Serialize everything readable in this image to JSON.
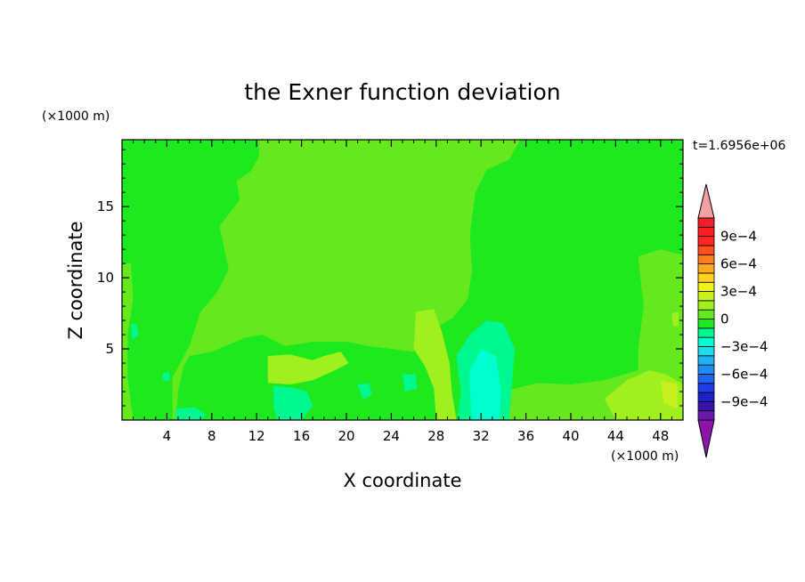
{
  "chart_data": {
    "type": "heatmap",
    "title": "the Exner function deviation",
    "xlabel": "X coordinate",
    "ylabel": "Z coordinate",
    "x_unit": "(×1000 m)",
    "y_unit": "(×1000 m)",
    "time_label": "t=1.6956e+06",
    "xlim": [
      0,
      50
    ],
    "ylim": [
      0,
      19.7
    ],
    "x_ticks": [
      4,
      8,
      12,
      16,
      20,
      24,
      28,
      32,
      36,
      40,
      44,
      48
    ],
    "y_ticks": [
      5,
      10,
      15
    ],
    "colorbar": {
      "levels": [
        -0.0011,
        -0.001,
        -0.0009,
        -0.0008,
        -0.0007,
        -0.0006,
        -0.0005,
        -0.0004,
        -0.0003,
        -0.0002,
        -0.0001,
        0,
        0.0001,
        0.0002,
        0.0003,
        0.0004,
        0.0005,
        0.0006,
        0.0007,
        0.0008,
        0.0009,
        0.001,
        0.0011
      ],
      "colors": [
        "#6a1aa8",
        "#3a14a8",
        "#2020c8",
        "#1e3ce8",
        "#1e64f0",
        "#1e8cf0",
        "#1eb4f0",
        "#1edcf0",
        "#00ffd0",
        "#00f890",
        "#1ee81e",
        "#66e81e",
        "#a0f01e",
        "#c8f01e",
        "#f0f01e",
        "#ffd21e",
        "#ffaa1e",
        "#ff7d1e",
        "#ff501e",
        "#ff281e",
        "#ff1e1e",
        "#f01e28"
      ],
      "under_color": "#8c14a8",
      "over_color": "#f4a0a0",
      "tick_labels": [
        "9e−4",
        "6e−4",
        "3e−4",
        "0",
        "−3e−4",
        "−6e−4",
        "−9e−4"
      ],
      "tick_values": [
        0.0009,
        0.0006,
        0.0003,
        0,
        -0.0003,
        -0.0006,
        -0.0009
      ]
    },
    "background_value": -5e-05,
    "regions": [
      {
        "value": 5e-05,
        "points": [
          [
            12.2,
            19.7
          ],
          [
            35.5,
            19.7
          ],
          [
            34.5,
            18.3
          ],
          [
            32.5,
            17.6
          ],
          [
            31.5,
            16
          ],
          [
            31,
            13
          ],
          [
            31.2,
            10.5
          ],
          [
            30.8,
            8.5
          ],
          [
            29.5,
            7.2
          ],
          [
            28,
            6.5
          ],
          [
            26,
            4.8
          ],
          [
            22,
            5.2
          ],
          [
            20,
            5.5
          ],
          [
            17,
            5.5
          ],
          [
            14.5,
            5.2
          ],
          [
            12.5,
            6
          ],
          [
            11,
            5.8
          ],
          [
            8,
            4.8
          ],
          [
            6,
            4.5
          ],
          [
            5.5,
            3.8
          ],
          [
            5,
            2
          ],
          [
            4.8,
            0
          ],
          [
            31,
            0
          ],
          [
            31.2,
            1.2
          ],
          [
            34,
            2
          ],
          [
            37,
            2.6
          ],
          [
            40,
            2.5
          ],
          [
            43,
            2.8
          ],
          [
            46,
            3.5
          ],
          [
            50,
            3.4
          ],
          [
            50,
            0
          ],
          [
            4.5,
            0
          ],
          [
            4.5,
            3
          ],
          [
            6,
            5.2
          ],
          [
            7,
            7.6
          ],
          [
            8.5,
            9
          ],
          [
            9.5,
            10.6
          ],
          [
            8.7,
            13.6
          ],
          [
            10.5,
            15.5
          ],
          [
            10.2,
            16.8
          ],
          [
            11.5,
            17.5
          ],
          [
            12.2,
            18.5
          ]
        ]
      },
      {
        "value": 5e-05,
        "points": [
          [
            46,
            11.5
          ],
          [
            48,
            12
          ],
          [
            50,
            11.6
          ],
          [
            50,
            3.4
          ],
          [
            46,
            3.5
          ],
          [
            46,
            5
          ],
          [
            46.5,
            8
          ],
          [
            46.2,
            10
          ]
        ]
      },
      {
        "value": 5e-05,
        "points": [
          [
            0,
            11
          ],
          [
            0.8,
            11
          ],
          [
            1,
            8.5
          ],
          [
            0.5,
            6
          ],
          [
            0.5,
            3
          ],
          [
            1,
            0
          ],
          [
            0,
            0
          ]
        ]
      },
      {
        "value": 0.00015,
        "points": [
          [
            26.2,
            7.6
          ],
          [
            27.8,
            7.8
          ],
          [
            28.5,
            6.2
          ],
          [
            29.2,
            4
          ],
          [
            29.4,
            2
          ],
          [
            29.8,
            0
          ],
          [
            28,
            0
          ],
          [
            27.8,
            2.2
          ],
          [
            27,
            3.8
          ],
          [
            26,
            5
          ]
        ]
      },
      {
        "value": 0.00015,
        "points": [
          [
            13,
            4.5
          ],
          [
            15,
            4.6
          ],
          [
            17,
            4.2
          ],
          [
            18,
            4.5
          ],
          [
            19.5,
            4.8
          ],
          [
            20.2,
            4
          ],
          [
            19,
            3.5
          ],
          [
            17,
            2.8
          ],
          [
            15,
            2.5
          ],
          [
            13,
            2.6
          ]
        ]
      },
      {
        "value": 0.00015,
        "points": [
          [
            43,
            1.5
          ],
          [
            45,
            2.8
          ],
          [
            47,
            3.5
          ],
          [
            48.5,
            3.2
          ],
          [
            50,
            2.5
          ],
          [
            50,
            0
          ],
          [
            44,
            0
          ]
        ]
      },
      {
        "value": 0.00025,
        "points": [
          [
            48,
            2.8
          ],
          [
            49.5,
            2.5
          ],
          [
            49.5,
            0.8
          ],
          [
            48.3,
            1.2
          ]
        ]
      },
      {
        "value": -0.00015,
        "points": [
          [
            29.8,
            4.5
          ],
          [
            31,
            6
          ],
          [
            32.5,
            7
          ],
          [
            34,
            6.8
          ],
          [
            35,
            5
          ],
          [
            34.8,
            3
          ],
          [
            34.5,
            0
          ],
          [
            29.9,
            0
          ],
          [
            30.2,
            2
          ]
        ]
      },
      {
        "value": -0.00025,
        "points": [
          [
            31,
            3.5
          ],
          [
            32,
            5
          ],
          [
            33.3,
            4.5
          ],
          [
            33.8,
            2
          ],
          [
            33.6,
            0
          ],
          [
            31.2,
            0
          ],
          [
            31,
            2
          ]
        ]
      },
      {
        "value": -0.00015,
        "points": [
          [
            13.5,
            2.4
          ],
          [
            15,
            2.3
          ],
          [
            16.5,
            2
          ],
          [
            17,
            1
          ],
          [
            16,
            0
          ],
          [
            13.8,
            0
          ],
          [
            13.5,
            1
          ]
        ]
      },
      {
        "value": -0.00015,
        "points": [
          [
            4.8,
            0.8
          ],
          [
            6.5,
            0.9
          ],
          [
            7.5,
            0.4
          ],
          [
            7,
            0
          ],
          [
            4.8,
            0
          ]
        ]
      },
      {
        "value": -0.00015,
        "points": [
          [
            0.8,
            6.8
          ],
          [
            1.3,
            6.7
          ],
          [
            1.5,
            6
          ],
          [
            0.9,
            5.6
          ]
        ]
      },
      {
        "value": -0.00015,
        "points": [
          [
            21,
            2.5
          ],
          [
            22,
            2.6
          ],
          [
            22.3,
            1.8
          ],
          [
            21.5,
            1.4
          ]
        ]
      },
      {
        "value": -0.00015,
        "points": [
          [
            25,
            3.2
          ],
          [
            26.2,
            3.2
          ],
          [
            26.3,
            2.2
          ],
          [
            25.2,
            2
          ]
        ]
      },
      {
        "value": -0.00015,
        "points": [
          [
            3.6,
            3.3
          ],
          [
            4.2,
            3.4
          ],
          [
            4.3,
            2.8
          ],
          [
            3.7,
            2.7
          ]
        ]
      },
      {
        "value": 0.00015,
        "points": [
          [
            49,
            7.5
          ],
          [
            49.6,
            7.6
          ],
          [
            49.6,
            6.6
          ],
          [
            49.1,
            6.6
          ]
        ]
      }
    ]
  }
}
